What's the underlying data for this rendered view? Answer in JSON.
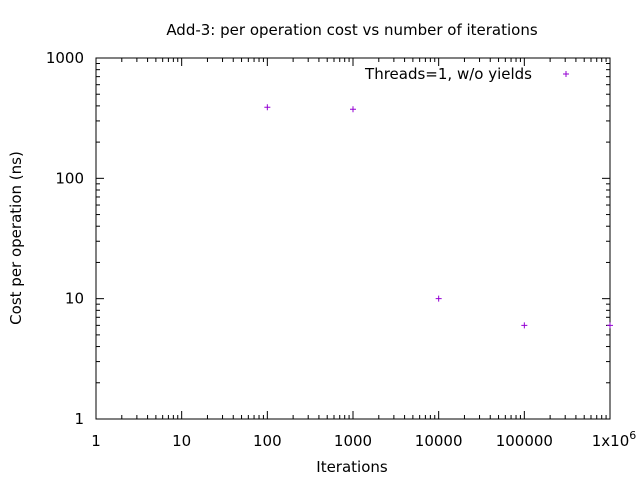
{
  "chart_data": {
    "type": "scatter",
    "title": "Add-3: per operation cost vs number of iterations",
    "xlabel": "Iterations",
    "ylabel": "Cost per operation (ns)",
    "x_scale": "log",
    "y_scale": "log",
    "xlim": [
      1,
      1000000
    ],
    "ylim": [
      1,
      1000
    ],
    "x_ticks": [
      {
        "value": 1,
        "label": "1"
      },
      {
        "value": 10,
        "label": "10"
      },
      {
        "value": 100,
        "label": "100"
      },
      {
        "value": 1000,
        "label": "1000"
      },
      {
        "value": 10000,
        "label": "10000"
      },
      {
        "value": 100000,
        "label": "100000"
      },
      {
        "value": 1000000,
        "label": "1x10",
        "sup": "6"
      }
    ],
    "y_ticks": [
      {
        "value": 1,
        "label": "1"
      },
      {
        "value": 10,
        "label": "10"
      },
      {
        "value": 100,
        "label": "100"
      },
      {
        "value": 1000,
        "label": "1000"
      }
    ],
    "grid": false,
    "legend_position": "top-right",
    "series": [
      {
        "name": "Threads=1, w/o yields",
        "color": "#9400d3",
        "marker": "plus",
        "points": [
          {
            "x": 100,
            "y": 390
          },
          {
            "x": 1000,
            "y": 375
          },
          {
            "x": 10000,
            "y": 10
          },
          {
            "x": 100000,
            "y": 6
          },
          {
            "x": 1000000,
            "y": 6
          }
        ]
      }
    ]
  }
}
